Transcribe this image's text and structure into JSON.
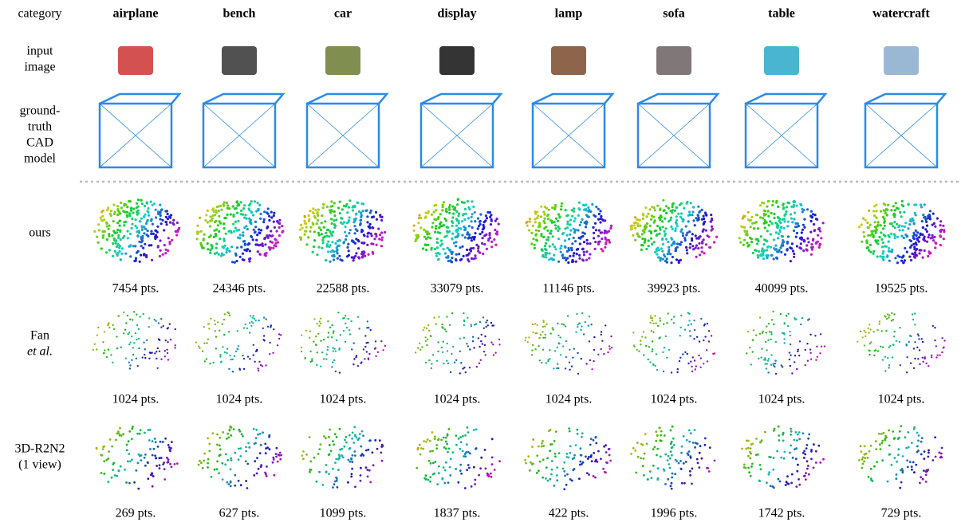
{
  "header": {
    "label": "category",
    "categories": [
      "airplane",
      "bench",
      "car",
      "display",
      "lamp",
      "sofa",
      "table",
      "watercraft"
    ]
  },
  "rows": [
    {
      "label": [
        "input",
        "image"
      ]
    },
    {
      "label": [
        "ground-",
        "truth",
        "CAD",
        "model"
      ]
    },
    {
      "label": [
        "ours"
      ],
      "counts": [
        "7454 pts.",
        "24346 pts.",
        "22588 pts.",
        "33079 pts.",
        "11146 pts.",
        "39923 pts.",
        "40099 pts.",
        "19525 pts."
      ]
    },
    {
      "label": [
        "Fan",
        "et al."
      ],
      "counts": [
        "1024 pts.",
        "1024 pts.",
        "1024 pts.",
        "1024 pts.",
        "1024 pts.",
        "1024 pts.",
        "1024 pts.",
        "1024 pts."
      ]
    },
    {
      "label": [
        "3D-R2N2",
        "(1 view)"
      ],
      "counts": [
        "269 pts.",
        "627 pts.",
        "1099 pts.",
        "1837 pts.",
        "422 pts.",
        "1996 pts.",
        "1742 pts.",
        "729 pts."
      ]
    }
  ]
}
